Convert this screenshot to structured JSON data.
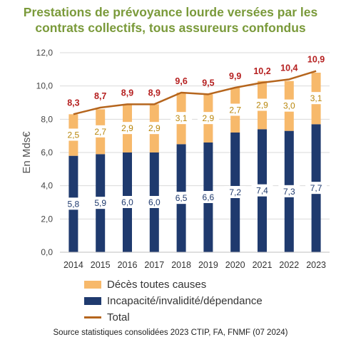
{
  "title": "Prestations de prévoyance lourde versées par les contrats collectifs, tous assureurs confondus",
  "source": "Source statistiques consolidées 2023 CTIP, FA, FNMF (07 2024)",
  "colors": {
    "incap": "#1f3a6e",
    "deces": "#f7b96b",
    "total": "#b5651d",
    "total_label": "#b51f1f",
    "deces_label": "#b8860b"
  },
  "chart_data": {
    "type": "bar",
    "stacked": true,
    "categories": [
      "2014",
      "2015",
      "2016",
      "2017",
      "2018",
      "2019",
      "2020",
      "2021",
      "2022",
      "2023"
    ],
    "series": [
      {
        "name": "Incapacité/invalidité/dépendance",
        "values": [
          5.8,
          5.9,
          6.0,
          6.0,
          6.5,
          6.6,
          7.2,
          7.4,
          7.3,
          7.7
        ],
        "labels": [
          "5,8",
          "5,9",
          "6,0",
          "6,0",
          "6,5",
          "6,6",
          "7,2",
          "7,4",
          "7,3",
          "7,7"
        ]
      },
      {
        "name": "Décès toutes causes",
        "values": [
          2.5,
          2.7,
          2.9,
          2.9,
          3.1,
          2.9,
          2.7,
          2.9,
          3.0,
          3.1
        ],
        "labels": [
          "2,5",
          "2,7",
          "2,9",
          "2,9",
          "3,1",
          "2,9",
          "2,7",
          "2,9",
          "3,0",
          "3,1"
        ]
      },
      {
        "name": "Total",
        "type": "line",
        "values": [
          8.3,
          8.7,
          8.9,
          8.9,
          9.6,
          9.5,
          9.9,
          10.2,
          10.4,
          10.9
        ],
        "labels": [
          "8,3",
          "8,7",
          "8,9",
          "8,9",
          "9,6",
          "9,5",
          "9,9",
          "10,2",
          "10,4",
          "10,9"
        ]
      }
    ],
    "ylabel": "En Mds€",
    "ylim": [
      0,
      12
    ],
    "yticks": [
      0,
      2,
      4,
      6,
      8,
      10,
      12
    ],
    "ytick_labels": [
      "0,0",
      "2,0",
      "4,0",
      "6,0",
      "8,0",
      "10,0",
      "12,0"
    ],
    "grid": true,
    "legend": "bottom"
  }
}
